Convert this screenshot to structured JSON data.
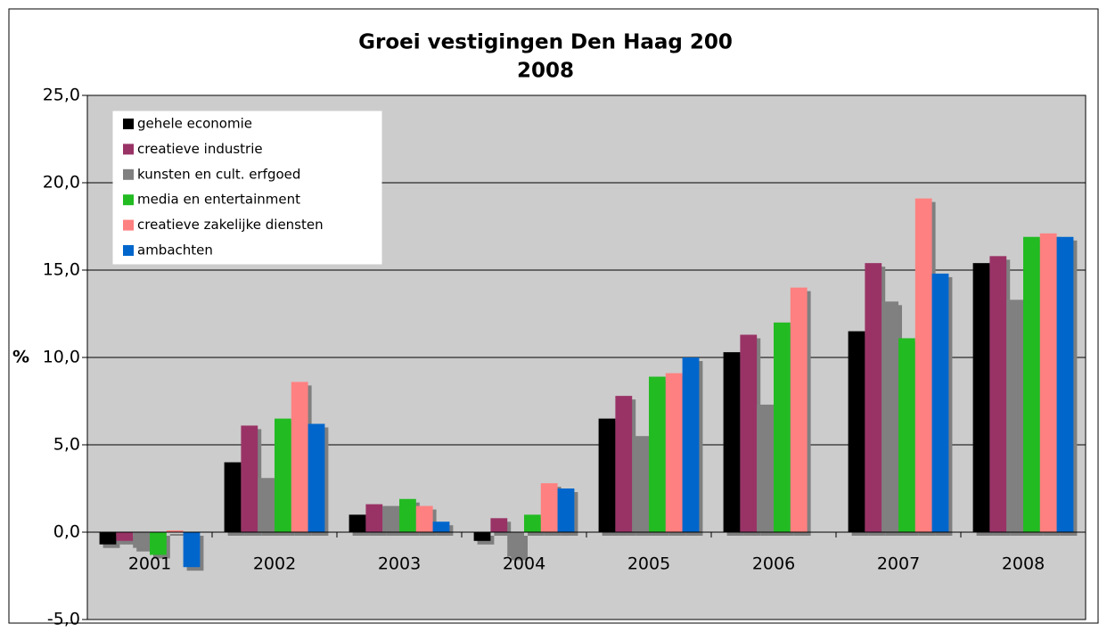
{
  "chart_data": {
    "type": "bar",
    "title": [
      "Groei vestigingen Den Haag 200",
      "2008"
    ],
    "y_label": "%",
    "categories": [
      "2001",
      "2002",
      "2003",
      "2004",
      "2005",
      "2006",
      "2007",
      "2008"
    ],
    "series": [
      {
        "name": "gehele economie",
        "color": "#000000",
        "values": [
          -0.7,
          4.0,
          1.0,
          -0.5,
          6.5,
          10.3,
          11.5,
          15.4
        ]
      },
      {
        "name": "creatieve industrie",
        "color": "#993366",
        "values": [
          -0.5,
          6.1,
          1.6,
          0.8,
          7.8,
          11.3,
          15.4,
          15.8
        ]
      },
      {
        "name": "kunsten en cult. erfgoed",
        "color": "#808080",
        "values": [
          -0.9,
          3.1,
          1.5,
          -1.4,
          5.5,
          7.3,
          13.2,
          13.3
        ]
      },
      {
        "name": "media en entertainment",
        "color": "#22bb22",
        "values": [
          -1.3,
          6.5,
          1.9,
          1.0,
          8.9,
          12.0,
          11.1,
          16.9
        ]
      },
      {
        "name": "creatieve zakelijke diensten",
        "color": "#ff8080",
        "values": [
          0.1,
          8.6,
          1.5,
          2.8,
          9.1,
          14.0,
          19.1,
          17.1
        ]
      },
      {
        "name": "ambachten",
        "color": "#0066cc",
        "values": [
          -2.0,
          6.2,
          0.6,
          2.5,
          10.0,
          null,
          14.8,
          16.9
        ]
      }
    ],
    "ylim": [
      -5,
      25
    ],
    "yticks": [
      {
        "value": -5,
        "label": "-5,0"
      },
      {
        "value": 0,
        "label": "0,0"
      },
      {
        "value": 5,
        "label": "5,0"
      },
      {
        "value": 10,
        "label": "10,0"
      },
      {
        "value": 15,
        "label": "15,0"
      },
      {
        "value": 20,
        "label": "20,0"
      },
      {
        "value": 25,
        "label": "25,0"
      }
    ],
    "grid": true,
    "legend": "upper left"
  }
}
